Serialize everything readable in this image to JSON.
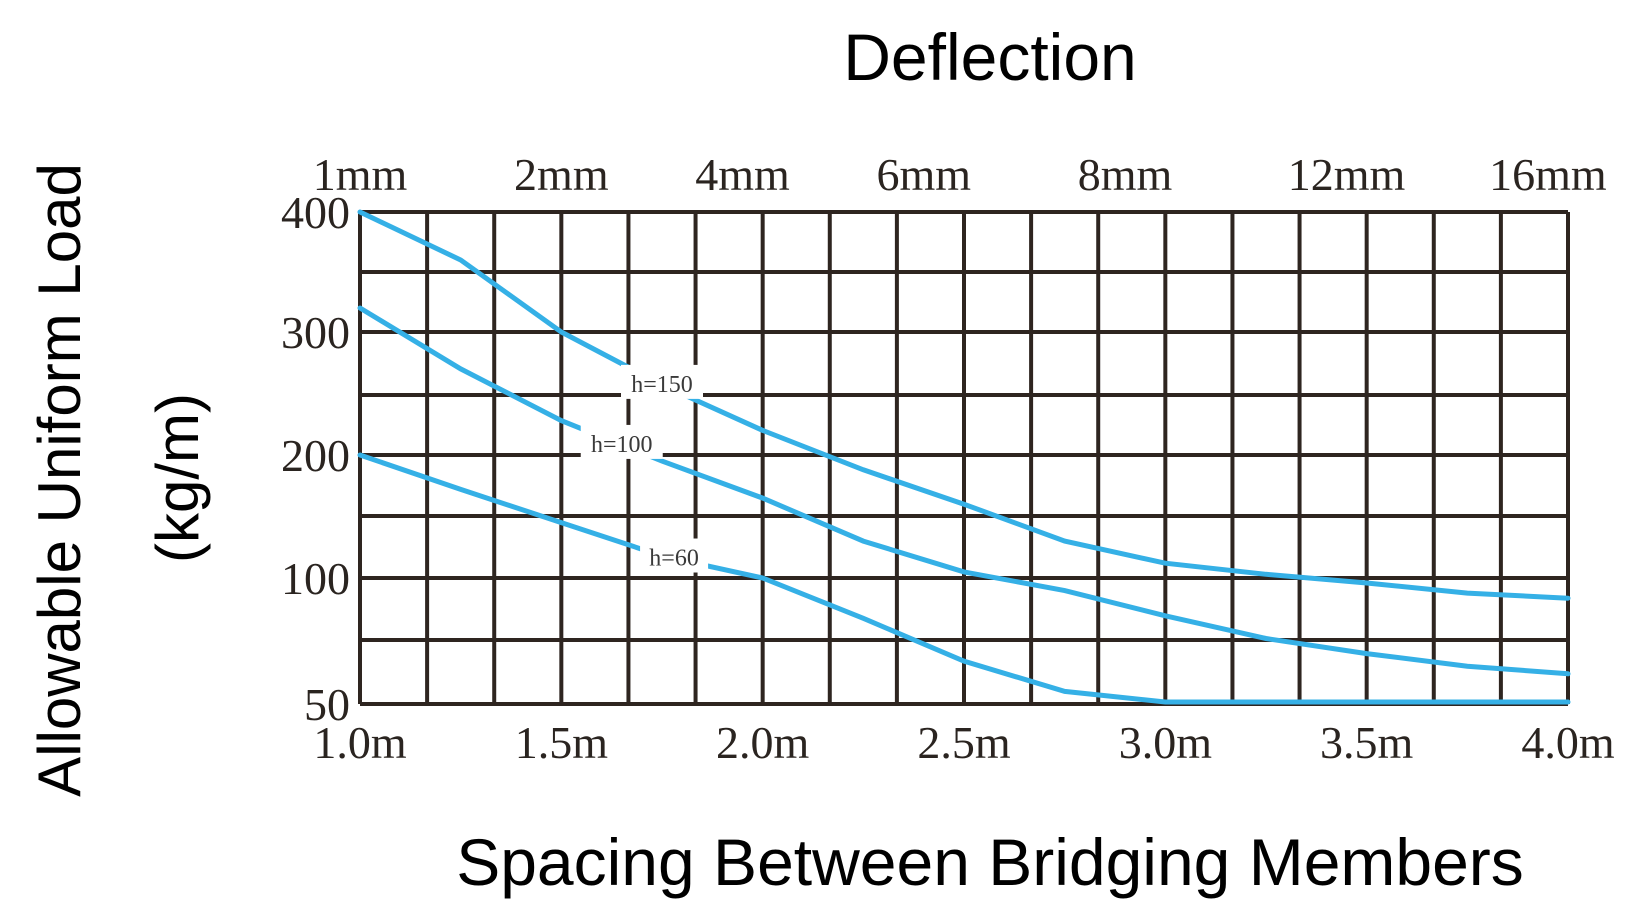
{
  "chart_data": {
    "type": "line",
    "title": "Deflection",
    "xlabel": "Spacing Between Bridging Members",
    "ylabel_line1": "Allowable Uniform Load",
    "ylabel_line2": "(kg/m)",
    "x_ticks": [
      "1.0m",
      "1.5m",
      "2.0m",
      "2.5m",
      "3.0m",
      "3.5m",
      "4.0m"
    ],
    "x_tick_values": [
      1.0,
      1.5,
      2.0,
      2.5,
      3.0,
      3.5,
      4.0
    ],
    "xlim": [
      1.0,
      4.0
    ],
    "y_ticks": [
      "400",
      "300",
      "200",
      "100",
      "50"
    ],
    "y_tick_values": [
      400,
      300,
      200,
      100,
      50
    ],
    "ylim": [
      50,
      400
    ],
    "top_ticks": [
      "1mm",
      "2mm",
      "4mm",
      "6mm",
      "8mm",
      "12mm",
      "16mm"
    ],
    "top_tick_positions_m": [
      1.0,
      1.5,
      1.95,
      2.4,
      2.9,
      3.45,
      3.95
    ],
    "grid": true,
    "series": [
      {
        "name": "h=150",
        "x": [
          1.0,
          1.25,
          1.5,
          1.75,
          2.0,
          2.25,
          2.5,
          2.75,
          3.0,
          3.25,
          3.5,
          3.75,
          4.0
        ],
        "values": [
          400,
          360,
          300,
          257,
          220,
          188,
          160,
          130,
          112,
          103,
          98,
          94,
          92
        ]
      },
      {
        "name": "h=100",
        "x": [
          1.0,
          1.25,
          1.5,
          1.75,
          2.0,
          2.25,
          2.5,
          2.75,
          3.0,
          3.25,
          3.5,
          3.75,
          4.0
        ],
        "values": [
          320,
          270,
          228,
          195,
          165,
          130,
          105,
          95,
          85,
          76,
          70,
          65,
          62
        ]
      },
      {
        "name": "h=60",
        "x": [
          1.0,
          1.25,
          1.5,
          1.75,
          2.0,
          2.25,
          2.5,
          2.75,
          3.0,
          3.25,
          3.5,
          3.75,
          4.0
        ],
        "values": [
          200,
          172,
          145,
          118,
          100,
          84,
          67,
          55,
          45,
          38,
          32,
          27,
          20
        ]
      }
    ],
    "curve_label_x": [
      1.75,
      1.65,
      1.78
    ],
    "colors": {
      "curve": "#35b0e6",
      "grid": "#2e2520"
    }
  }
}
